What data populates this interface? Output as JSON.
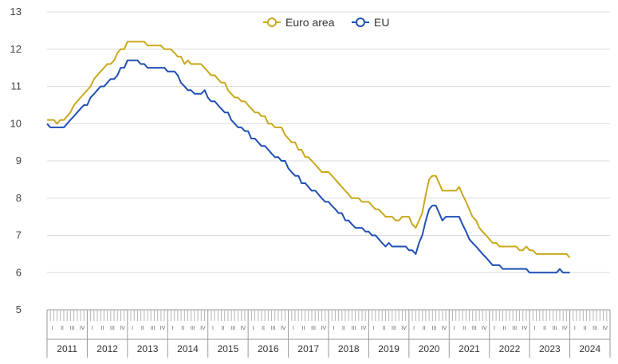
{
  "chart_data": {
    "type": "line",
    "title": "",
    "xlabel": "",
    "ylabel": "",
    "ylim": [
      5,
      13
    ],
    "yticks": [
      5,
      6,
      7,
      8,
      9,
      10,
      11,
      12,
      13
    ],
    "grid": "horizontal",
    "legend_position": "top-center",
    "xlim": [
      2011.0,
      2025.0
    ],
    "year_labels": [
      "2011",
      "2012",
      "2013",
      "2014",
      "2015",
      "2016",
      "2017",
      "2018",
      "2019",
      "2020",
      "2021",
      "2022",
      "2023",
      "2024"
    ],
    "quarter_labels": [
      "I",
      "II",
      "III",
      "IV"
    ],
    "series": [
      {
        "name": "Euro area",
        "color": "#c9a81a",
        "points": [
          [
            2011.0,
            10.1
          ],
          [
            2011.17,
            10.1
          ],
          [
            2011.25,
            10.0
          ],
          [
            2011.33,
            10.1
          ],
          [
            2011.42,
            10.1
          ],
          [
            2011.5,
            10.2
          ],
          [
            2011.58,
            10.3
          ],
          [
            2011.67,
            10.5
          ],
          [
            2011.83,
            10.7
          ],
          [
            2012.0,
            10.9
          ],
          [
            2012.08,
            11.0
          ],
          [
            2012.17,
            11.2
          ],
          [
            2012.25,
            11.3
          ],
          [
            2012.33,
            11.4
          ],
          [
            2012.42,
            11.5
          ],
          [
            2012.5,
            11.6
          ],
          [
            2012.58,
            11.6
          ],
          [
            2012.67,
            11.7
          ],
          [
            2012.75,
            11.9
          ],
          [
            2012.83,
            12.0
          ],
          [
            2012.92,
            12.0
          ],
          [
            2013.0,
            12.2
          ],
          [
            2013.42,
            12.2
          ],
          [
            2013.5,
            12.1
          ],
          [
            2013.83,
            12.1
          ],
          [
            2013.92,
            12.0
          ],
          [
            2014.08,
            12.0
          ],
          [
            2014.17,
            11.9
          ],
          [
            2014.25,
            11.8
          ],
          [
            2014.33,
            11.8
          ],
          [
            2014.42,
            11.6
          ],
          [
            2014.5,
            11.7
          ],
          [
            2014.58,
            11.6
          ],
          [
            2014.83,
            11.6
          ],
          [
            2015.0,
            11.4
          ],
          [
            2015.08,
            11.3
          ],
          [
            2015.17,
            11.3
          ],
          [
            2015.25,
            11.2
          ],
          [
            2015.33,
            11.1
          ],
          [
            2015.42,
            11.1
          ],
          [
            2015.5,
            10.9
          ],
          [
            2015.58,
            10.8
          ],
          [
            2015.67,
            10.7
          ],
          [
            2015.75,
            10.7
          ],
          [
            2015.83,
            10.6
          ],
          [
            2015.92,
            10.6
          ],
          [
            2016.0,
            10.5
          ],
          [
            2016.08,
            10.4
          ],
          [
            2016.17,
            10.3
          ],
          [
            2016.25,
            10.3
          ],
          [
            2016.33,
            10.2
          ],
          [
            2016.42,
            10.2
          ],
          [
            2016.5,
            10.0
          ],
          [
            2016.58,
            10.0
          ],
          [
            2016.67,
            9.9
          ],
          [
            2016.83,
            9.9
          ],
          [
            2016.92,
            9.7
          ],
          [
            2017.0,
            9.6
          ],
          [
            2017.08,
            9.5
          ],
          [
            2017.17,
            9.5
          ],
          [
            2017.25,
            9.3
          ],
          [
            2017.33,
            9.3
          ],
          [
            2017.42,
            9.1
          ],
          [
            2017.5,
            9.1
          ],
          [
            2017.67,
            8.9
          ],
          [
            2017.83,
            8.7
          ],
          [
            2018.0,
            8.7
          ],
          [
            2018.17,
            8.5
          ],
          [
            2018.33,
            8.3
          ],
          [
            2018.5,
            8.1
          ],
          [
            2018.58,
            8.0
          ],
          [
            2018.75,
            8.0
          ],
          [
            2018.83,
            7.9
          ],
          [
            2019.0,
            7.9
          ],
          [
            2019.08,
            7.8
          ],
          [
            2019.17,
            7.7
          ],
          [
            2019.25,
            7.7
          ],
          [
            2019.33,
            7.6
          ],
          [
            2019.42,
            7.5
          ],
          [
            2019.58,
            7.5
          ],
          [
            2019.67,
            7.4
          ],
          [
            2019.75,
            7.4
          ],
          [
            2019.83,
            7.5
          ],
          [
            2020.0,
            7.5
          ],
          [
            2020.08,
            7.3
          ],
          [
            2020.17,
            7.2
          ],
          [
            2020.25,
            7.4
          ],
          [
            2020.33,
            7.6
          ],
          [
            2020.42,
            8.1
          ],
          [
            2020.5,
            8.5
          ],
          [
            2020.58,
            8.6
          ],
          [
            2020.67,
            8.6
          ],
          [
            2020.75,
            8.4
          ],
          [
            2020.83,
            8.2
          ],
          [
            2021.17,
            8.2
          ],
          [
            2021.25,
            8.3
          ],
          [
            2021.33,
            8.1
          ],
          [
            2021.42,
            7.9
          ],
          [
            2021.5,
            7.7
          ],
          [
            2021.58,
            7.5
          ],
          [
            2021.67,
            7.4
          ],
          [
            2021.75,
            7.2
          ],
          [
            2021.83,
            7.1
          ],
          [
            2021.92,
            7.0
          ],
          [
            2022.0,
            6.9
          ],
          [
            2022.08,
            6.8
          ],
          [
            2022.17,
            6.8
          ],
          [
            2022.25,
            6.7
          ],
          [
            2022.67,
            6.7
          ],
          [
            2022.75,
            6.6
          ],
          [
            2022.83,
            6.6
          ],
          [
            2022.92,
            6.7
          ],
          [
            2023.0,
            6.6
          ],
          [
            2023.08,
            6.6
          ],
          [
            2023.17,
            6.5
          ],
          [
            2023.83,
            6.5
          ],
          [
            2023.92,
            6.5
          ],
          [
            2024.0,
            6.4
          ]
        ]
      },
      {
        "name": "EU",
        "color": "#1f4fb4",
        "points": [
          [
            2011.0,
            10.0
          ],
          [
            2011.08,
            9.9
          ],
          [
            2011.42,
            9.9
          ],
          [
            2011.5,
            10.0
          ],
          [
            2011.58,
            10.1
          ],
          [
            2011.67,
            10.2
          ],
          [
            2011.75,
            10.3
          ],
          [
            2011.83,
            10.4
          ],
          [
            2011.92,
            10.5
          ],
          [
            2012.0,
            10.5
          ],
          [
            2012.08,
            10.7
          ],
          [
            2012.17,
            10.8
          ],
          [
            2012.25,
            10.9
          ],
          [
            2012.33,
            11.0
          ],
          [
            2012.42,
            11.0
          ],
          [
            2012.5,
            11.1
          ],
          [
            2012.58,
            11.2
          ],
          [
            2012.67,
            11.2
          ],
          [
            2012.75,
            11.3
          ],
          [
            2012.83,
            11.5
          ],
          [
            2012.92,
            11.5
          ],
          [
            2013.0,
            11.7
          ],
          [
            2013.25,
            11.7
          ],
          [
            2013.33,
            11.6
          ],
          [
            2013.42,
            11.6
          ],
          [
            2013.5,
            11.5
          ],
          [
            2013.92,
            11.5
          ],
          [
            2014.0,
            11.4
          ],
          [
            2014.17,
            11.4
          ],
          [
            2014.25,
            11.3
          ],
          [
            2014.33,
            11.1
          ],
          [
            2014.42,
            11.0
          ],
          [
            2014.5,
            10.9
          ],
          [
            2014.58,
            10.9
          ],
          [
            2014.67,
            10.8
          ],
          [
            2014.83,
            10.8
          ],
          [
            2014.92,
            10.9
          ],
          [
            2015.0,
            10.7
          ],
          [
            2015.08,
            10.6
          ],
          [
            2015.17,
            10.6
          ],
          [
            2015.25,
            10.5
          ],
          [
            2015.33,
            10.4
          ],
          [
            2015.42,
            10.3
          ],
          [
            2015.5,
            10.3
          ],
          [
            2015.58,
            10.1
          ],
          [
            2015.67,
            10.0
          ],
          [
            2015.75,
            9.9
          ],
          [
            2015.83,
            9.9
          ],
          [
            2015.92,
            9.8
          ],
          [
            2016.0,
            9.8
          ],
          [
            2016.08,
            9.6
          ],
          [
            2016.17,
            9.6
          ],
          [
            2016.25,
            9.5
          ],
          [
            2016.33,
            9.4
          ],
          [
            2016.42,
            9.4
          ],
          [
            2016.5,
            9.3
          ],
          [
            2016.58,
            9.2
          ],
          [
            2016.67,
            9.1
          ],
          [
            2016.75,
            9.1
          ],
          [
            2016.83,
            9.0
          ],
          [
            2016.92,
            9.0
          ],
          [
            2017.0,
            8.8
          ],
          [
            2017.08,
            8.7
          ],
          [
            2017.17,
            8.6
          ],
          [
            2017.25,
            8.6
          ],
          [
            2017.33,
            8.4
          ],
          [
            2017.42,
            8.4
          ],
          [
            2017.5,
            8.3
          ],
          [
            2017.58,
            8.2
          ],
          [
            2017.67,
            8.2
          ],
          [
            2017.75,
            8.1
          ],
          [
            2017.83,
            8.0
          ],
          [
            2017.92,
            7.9
          ],
          [
            2018.0,
            7.9
          ],
          [
            2018.08,
            7.8
          ],
          [
            2018.17,
            7.7
          ],
          [
            2018.25,
            7.6
          ],
          [
            2018.33,
            7.6
          ],
          [
            2018.42,
            7.4
          ],
          [
            2018.5,
            7.4
          ],
          [
            2018.58,
            7.3
          ],
          [
            2018.67,
            7.2
          ],
          [
            2018.83,
            7.2
          ],
          [
            2018.92,
            7.1
          ],
          [
            2019.0,
            7.1
          ],
          [
            2019.08,
            7.0
          ],
          [
            2019.17,
            7.0
          ],
          [
            2019.25,
            6.9
          ],
          [
            2019.33,
            6.8
          ],
          [
            2019.42,
            6.7
          ],
          [
            2019.5,
            6.8
          ],
          [
            2019.58,
            6.7
          ],
          [
            2019.92,
            6.7
          ],
          [
            2020.0,
            6.6
          ],
          [
            2020.08,
            6.6
          ],
          [
            2020.17,
            6.5
          ],
          [
            2020.25,
            6.8
          ],
          [
            2020.33,
            7.0
          ],
          [
            2020.42,
            7.4
          ],
          [
            2020.5,
            7.7
          ],
          [
            2020.58,
            7.8
          ],
          [
            2020.67,
            7.8
          ],
          [
            2020.75,
            7.6
          ],
          [
            2020.83,
            7.4
          ],
          [
            2020.92,
            7.5
          ],
          [
            2021.25,
            7.5
          ],
          [
            2021.33,
            7.3
          ],
          [
            2021.42,
            7.1
          ],
          [
            2021.5,
            6.9
          ],
          [
            2021.58,
            6.8
          ],
          [
            2021.67,
            6.7
          ],
          [
            2021.75,
            6.6
          ],
          [
            2021.83,
            6.5
          ],
          [
            2021.92,
            6.4
          ],
          [
            2022.0,
            6.3
          ],
          [
            2022.08,
            6.2
          ],
          [
            2022.25,
            6.2
          ],
          [
            2022.33,
            6.1
          ],
          [
            2022.92,
            6.1
          ],
          [
            2023.0,
            6.0
          ],
          [
            2023.67,
            6.0
          ],
          [
            2023.75,
            6.1
          ],
          [
            2023.83,
            6.0
          ],
          [
            2024.0,
            6.0
          ]
        ]
      }
    ]
  }
}
